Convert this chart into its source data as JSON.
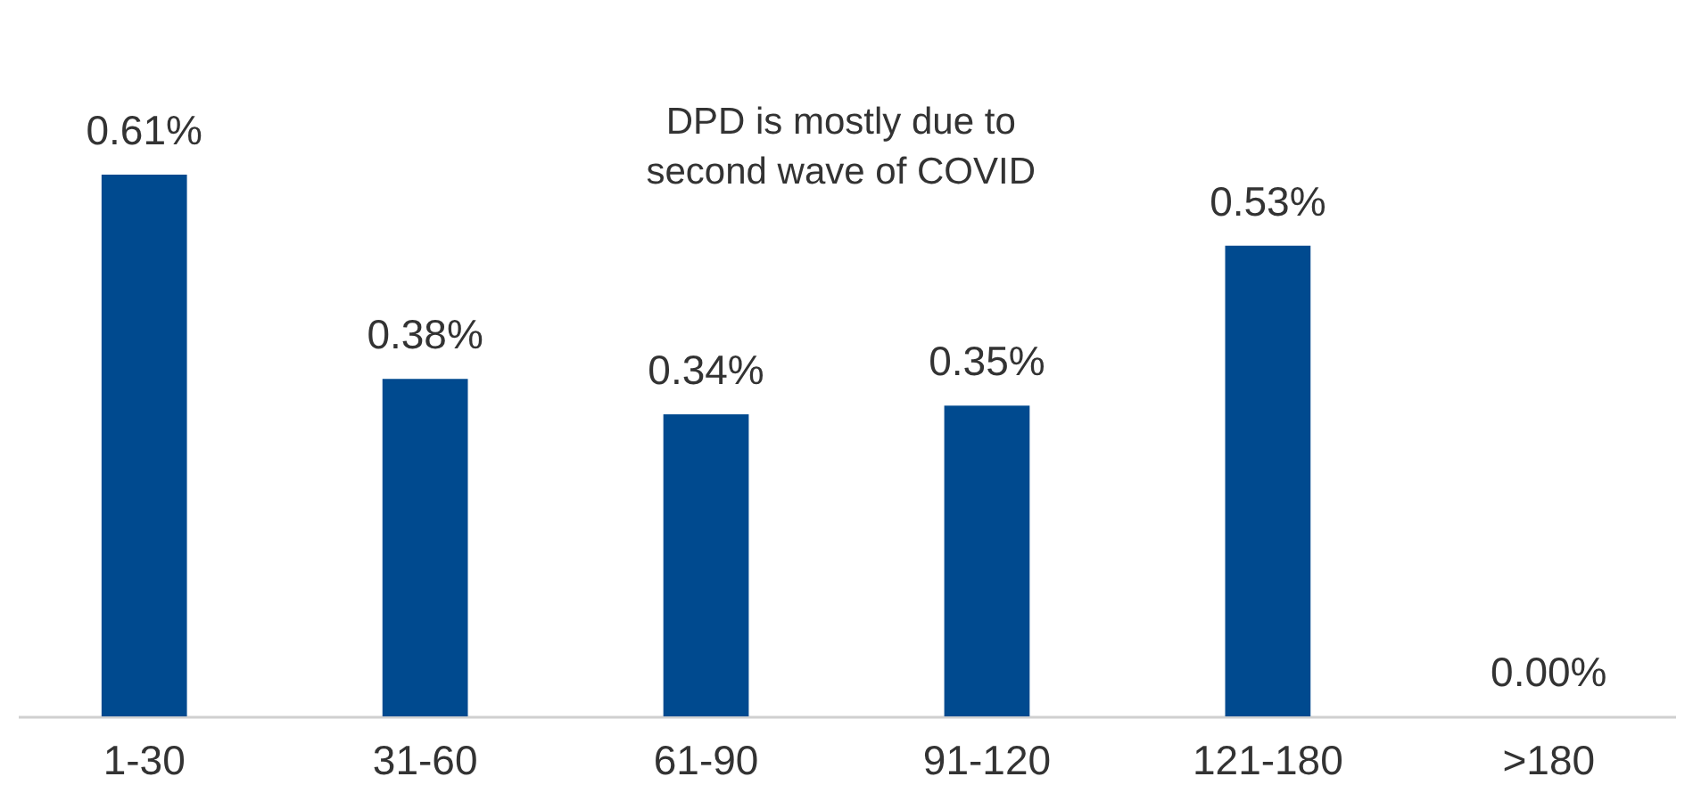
{
  "chart_data": {
    "type": "bar",
    "categories": [
      "1-30",
      "31-60",
      "61-90",
      "91-120",
      "121-180",
      ">180"
    ],
    "values": [
      0.61,
      0.38,
      0.34,
      0.35,
      0.53,
      0.0
    ],
    "value_labels": [
      "0.61%",
      "0.38%",
      "0.34%",
      "0.35%",
      "0.53%",
      "0.00%"
    ],
    "color": "#004a8f",
    "annotations": [
      "DPD is mostly due to second wave of COVID"
    ]
  }
}
